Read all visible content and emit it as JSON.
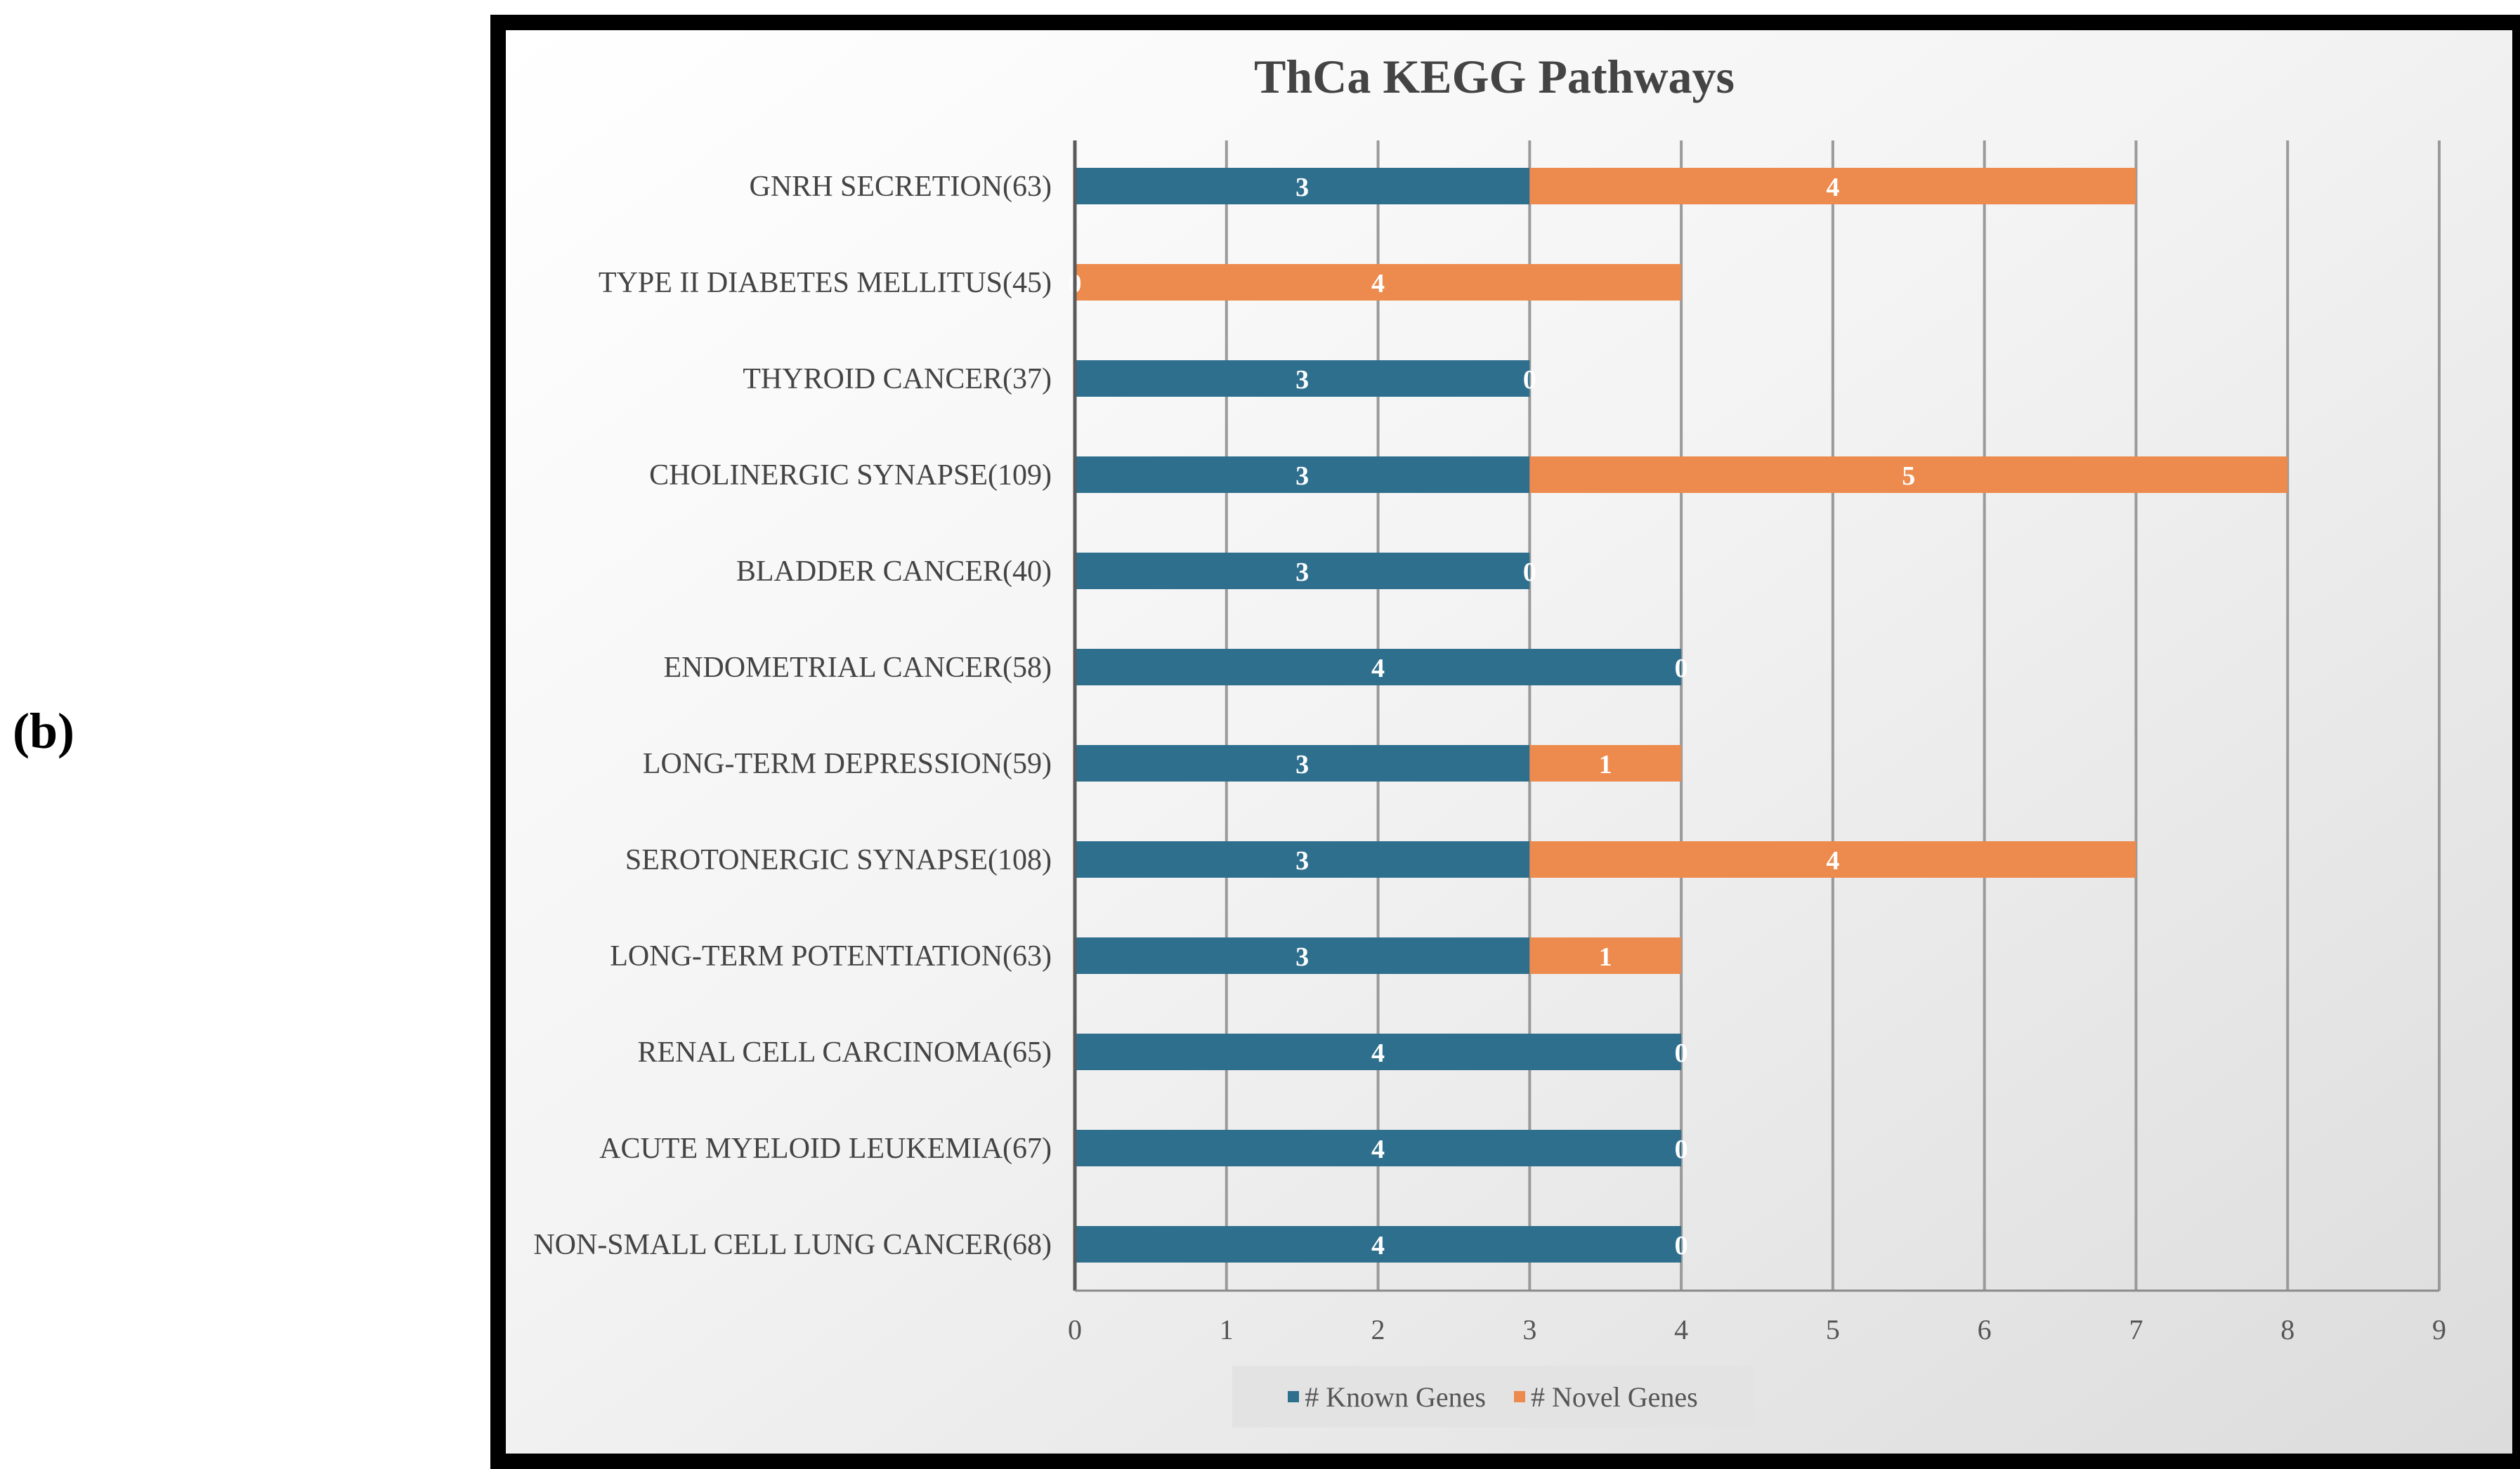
{
  "panel_label": "(b)",
  "chart_data": {
    "type": "bar",
    "orientation": "horizontal",
    "stacked": true,
    "title": "ThCa KEGG Pathways",
    "categories": [
      "GNRH SECRETION(63)",
      "TYPE II DIABETES MELLITUS(45)",
      "THYROID CANCER(37)",
      "CHOLINERGIC SYNAPSE(109)",
      "BLADDER CANCER(40)",
      "ENDOMETRIAL CANCER(58)",
      "LONG-TERM DEPRESSION(59)",
      "SEROTONERGIC SYNAPSE(108)",
      "LONG-TERM POTENTIATION(63)",
      "RENAL CELL CARCINOMA(65)",
      "ACUTE MYELOID LEUKEMIA(67)",
      "NON-SMALL CELL LUNG CANCER(68)"
    ],
    "series": [
      {
        "name": "# Known Genes",
        "color": "#2e6f8e",
        "values": [
          3,
          0,
          3,
          3,
          3,
          4,
          3,
          3,
          3,
          4,
          4,
          4
        ]
      },
      {
        "name": "# Novel Genes",
        "color": "#ed8a4d",
        "values": [
          4,
          4,
          0,
          5,
          0,
          0,
          1,
          4,
          1,
          0,
          0,
          0
        ]
      }
    ],
    "xlim": [
      0,
      9
    ],
    "xticks": [
      0,
      1,
      2,
      3,
      4,
      5,
      6,
      7,
      8,
      9
    ],
    "xlabel": "",
    "ylabel": "",
    "grid": "vertical",
    "legend_position": "bottom",
    "data_labels": true
  }
}
